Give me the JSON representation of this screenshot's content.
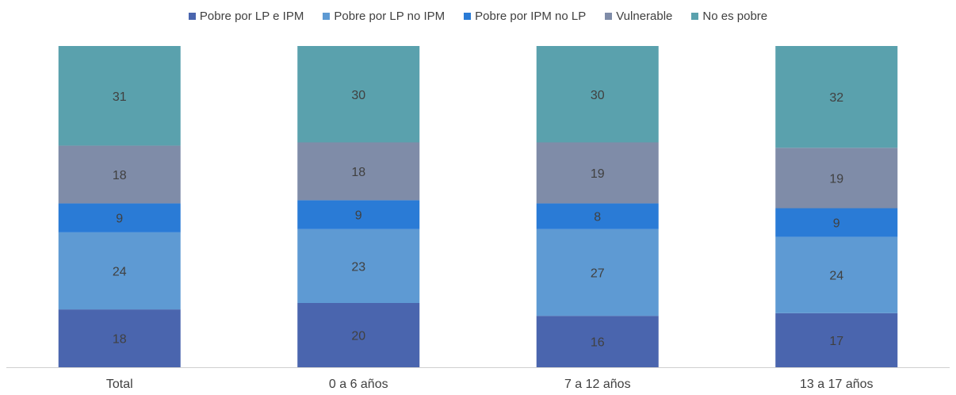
{
  "chart_data": {
    "type": "bar",
    "stacked": true,
    "categories": [
      "Total",
      "0 a 6 años",
      "7 a 12 años",
      "13 a 17 años"
    ],
    "series": [
      {
        "name": "Pobre por LP e IPM",
        "color": "#4a65ae",
        "values": [
          18,
          20,
          16,
          17
        ]
      },
      {
        "name": "Pobre por LP no IPM",
        "color": "#5e9ad3",
        "values": [
          24,
          23,
          27,
          24
        ]
      },
      {
        "name": "Pobre por IPM no LP",
        "color": "#2a7bd6",
        "values": [
          9,
          9,
          8,
          9
        ]
      },
      {
        "name": "Vulnerable",
        "color": "#7f8ca8",
        "values": [
          18,
          18,
          19,
          19
        ]
      },
      {
        "name": "No es pobre",
        "color": "#5aa1ad",
        "values": [
          31,
          30,
          30,
          32
        ]
      }
    ],
    "title": "",
    "xlabel": "",
    "ylabel": "",
    "legend_position": "top",
    "grid": false,
    "data_labels": true
  }
}
